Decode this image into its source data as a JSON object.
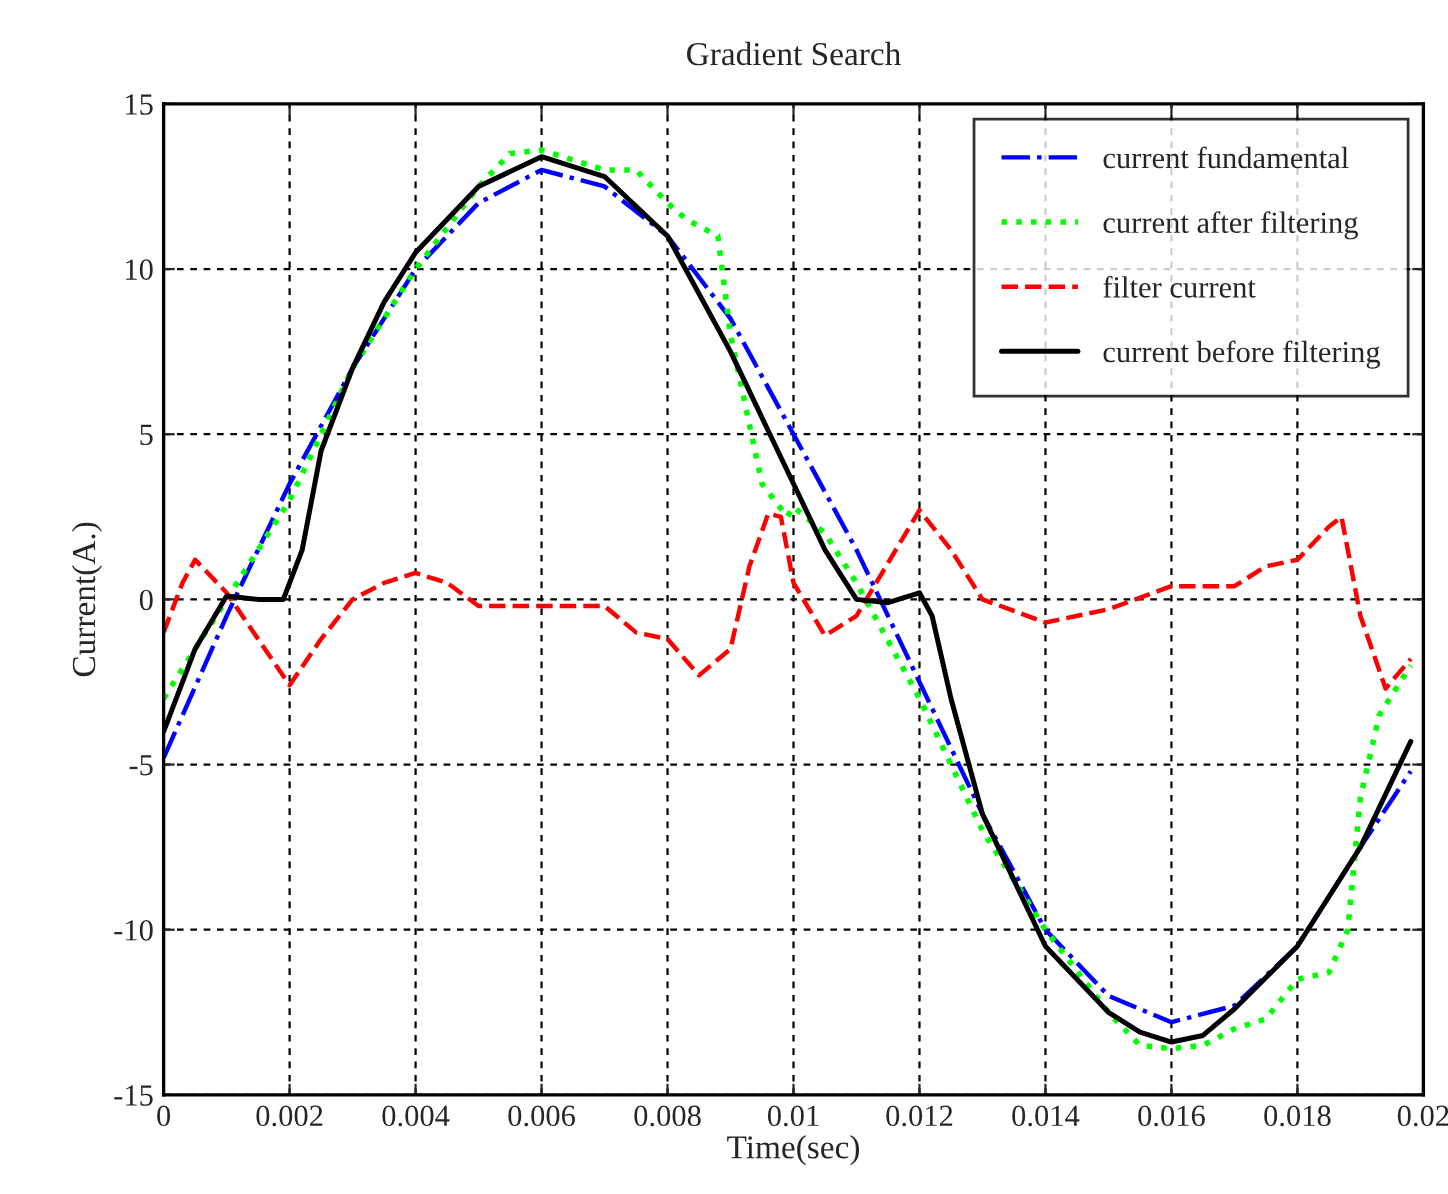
{
  "chart_data": {
    "type": "line",
    "title": "Gradient Search",
    "xlabel": "Time(sec)",
    "ylabel": "Current(A.)",
    "xlim": [
      0,
      0.02
    ],
    "ylim": [
      -15,
      15
    ],
    "xticks": [
      0,
      0.002,
      0.004,
      0.006,
      0.008,
      0.01,
      0.012,
      0.014,
      0.016,
      0.018,
      0.02
    ],
    "yticks": [
      -15,
      -10,
      -5,
      0,
      5,
      10,
      15
    ],
    "grid": true,
    "legend": "top right",
    "marker": "none",
    "series": [
      {
        "name": "current fundamental",
        "color": "#0000ff",
        "line_style": "dashdot",
        "x": [
          0,
          0.001,
          0.002,
          0.003,
          0.004,
          0.005,
          0.006,
          0.007,
          0.008,
          0.009,
          0.01,
          0.011,
          0.012,
          0.013,
          0.014,
          0.015,
          0.016,
          0.017,
          0.018,
          0.019,
          0.0198
        ],
        "values": [
          -4.8,
          -0.5,
          3.5,
          7,
          10,
          12,
          13,
          12.5,
          11,
          8.5,
          5,
          1.5,
          -2.5,
          -6.5,
          -10,
          -12,
          -12.8,
          -12.3,
          -10.5,
          -7.5,
          -5.2
        ]
      },
      {
        "name": "current after filtering",
        "color": "#00ff00",
        "line_style": "dotted",
        "x": [
          0,
          0.001,
          0.002,
          0.003,
          0.004,
          0.005,
          0.0055,
          0.006,
          0.0065,
          0.007,
          0.0075,
          0.008,
          0.0083,
          0.0088,
          0.009,
          0.0095,
          0.0099,
          0.01,
          0.0105,
          0.011,
          0.012,
          0.013,
          0.014,
          0.015,
          0.0155,
          0.016,
          0.0165,
          0.017,
          0.0175,
          0.018,
          0.0185,
          0.0188,
          0.019,
          0.0193,
          0.0198
        ],
        "values": [
          -3,
          0,
          3,
          7,
          10,
          12.5,
          13.5,
          13.6,
          13.3,
          13,
          13,
          12,
          11.5,
          11,
          8,
          3.5,
          2.5,
          2.8,
          2,
          0.5,
          -3,
          -7,
          -10,
          -12.5,
          -13.5,
          -13.6,
          -13.5,
          -13,
          -12.7,
          -11.5,
          -11.3,
          -10,
          -6,
          -3.5,
          -2
        ]
      },
      {
        "name": "filter current",
        "color": "#ff0000",
        "line_style": "dashed",
        "x": [
          0,
          0.0003,
          0.0005,
          0.001,
          0.0015,
          0.002,
          0.0025,
          0.003,
          0.0035,
          0.004,
          0.0045,
          0.005,
          0.006,
          0.007,
          0.0075,
          0.008,
          0.0085,
          0.009,
          0.0093,
          0.0096,
          0.0098,
          0.01,
          0.0105,
          0.011,
          0.012,
          0.0125,
          0.013,
          0.014,
          0.015,
          0.016,
          0.017,
          0.0175,
          0.018,
          0.0185,
          0.0187,
          0.019,
          0.0194,
          0.0198
        ],
        "values": [
          -1,
          0.5,
          1.2,
          0.2,
          -1.2,
          -2.6,
          -1.2,
          0,
          0.5,
          0.8,
          0.5,
          -0.2,
          -0.2,
          -0.2,
          -1,
          -1.2,
          -2.3,
          -1.5,
          1,
          2.6,
          2.5,
          0.5,
          -1.1,
          -0.5,
          2.7,
          1.5,
          0,
          -0.7,
          -0.3,
          0.4,
          0.4,
          1,
          1.2,
          2.2,
          2.5,
          -0.5,
          -2.7,
          -1.8
        ]
      },
      {
        "name": "current before filtering",
        "color": "#000000",
        "line_style": "solid",
        "x": [
          0,
          0.0005,
          0.001,
          0.0015,
          0.0019,
          0.0022,
          0.0025,
          0.003,
          0.0035,
          0.004,
          0.005,
          0.006,
          0.007,
          0.008,
          0.009,
          0.0095,
          0.01,
          0.0105,
          0.011,
          0.0115,
          0.012,
          0.0122,
          0.0125,
          0.013,
          0.014,
          0.015,
          0.0155,
          0.016,
          0.0165,
          0.017,
          0.018,
          0.019,
          0.0198
        ],
        "values": [
          -4,
          -1.5,
          0.1,
          0,
          0,
          1.5,
          4.5,
          7,
          9,
          10.5,
          12.5,
          13.4,
          12.8,
          11,
          7.5,
          5.5,
          3.5,
          1.5,
          0,
          -0.1,
          0.2,
          -0.5,
          -3,
          -6.5,
          -10.5,
          -12.5,
          -13.1,
          -13.4,
          -13.2,
          -12.4,
          -10.5,
          -7.5,
          -4.3
        ]
      }
    ]
  }
}
